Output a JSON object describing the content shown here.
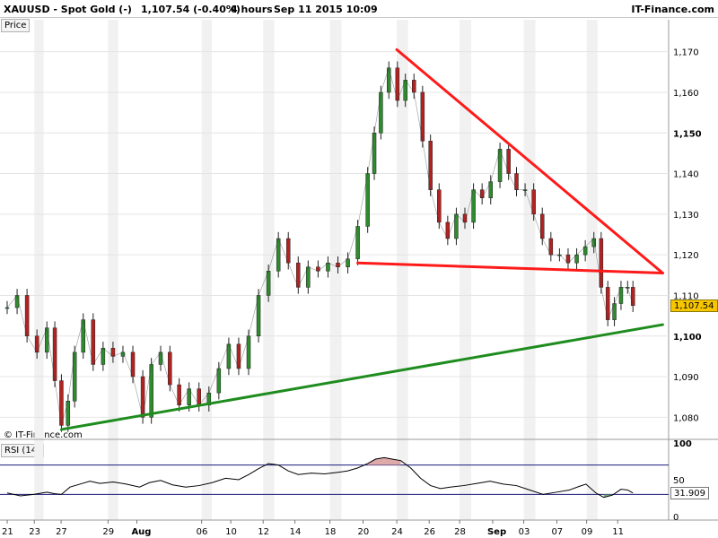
{
  "header": {
    "symbol": "XAUUSD - Spot Gold (-)",
    "last": "1,107.54 (-0.40%)",
    "timeframe": "4 hours",
    "datetime": "Sep 11 2015 10:09",
    "brand": "IT-Finance.com"
  },
  "panels": {
    "price_label": "Price",
    "rsi_label": "RSI (14)",
    "watermark": "© IT-Finance.com"
  },
  "colors": {
    "up_candle": "#2e8b2e",
    "down_candle": "#b22222",
    "resistance_line": "#ff1a1a",
    "support_line": "#1e8c1e",
    "price_box": "#f7c600",
    "rsi_line": "#000000",
    "rsi_band": "#1a1a80",
    "rsi_overbought_fill": "#d89a9a",
    "rsi_oversold_fill": "#6a9a6a"
  },
  "chart_data": {
    "type": "line",
    "title": "XAUUSD - Spot Gold (-)",
    "timeframe": "4 hours",
    "last_price": 1107.54,
    "last_price_label": "1,107.54",
    "ylim": [
      1075,
      1175
    ],
    "yticks": [
      {
        "value": 1080,
        "label": "1,080",
        "bold": false
      },
      {
        "value": 1090,
        "label": "1,090",
        "bold": false
      },
      {
        "value": 1100,
        "label": "1,100",
        "bold": true
      },
      {
        "value": 1110,
        "label": "1,110",
        "bold": false
      },
      {
        "value": 1120,
        "label": "1,120",
        "bold": false
      },
      {
        "value": 1130,
        "label": "1,130",
        "bold": false
      },
      {
        "value": 1140,
        "label": "1,140",
        "bold": false
      },
      {
        "value": 1150,
        "label": "1,150",
        "bold": true
      },
      {
        "value": 1160,
        "label": "1,160",
        "bold": false
      },
      {
        "value": 1170,
        "label": "1,170",
        "bold": false
      }
    ],
    "xticks": [
      {
        "label": "21",
        "bold": false,
        "pos": 0.0
      },
      {
        "label": "23",
        "bold": false,
        "pos": 0.041
      },
      {
        "label": "27",
        "bold": false,
        "pos": 0.0815
      },
      {
        "label": "29",
        "bold": false,
        "pos": 0.1525
      },
      {
        "label": "Aug",
        "bold": true,
        "pos": 0.196
      },
      {
        "label": "06",
        "bold": false,
        "pos": 0.294
      },
      {
        "label": "10",
        "bold": false,
        "pos": 0.338
      },
      {
        "label": "12",
        "bold": false,
        "pos": 0.387
      },
      {
        "label": "14",
        "bold": false,
        "pos": 0.435
      },
      {
        "label": "18",
        "bold": false,
        "pos": 0.488
      },
      {
        "label": "20",
        "bold": false,
        "pos": 0.538
      },
      {
        "label": "24",
        "bold": false,
        "pos": 0.589
      },
      {
        "label": "26",
        "bold": false,
        "pos": 0.638
      },
      {
        "label": "28",
        "bold": false,
        "pos": 0.684
      },
      {
        "label": "Sep",
        "bold": true,
        "pos": 0.734
      },
      {
        "label": "03",
        "bold": false,
        "pos": 0.781
      },
      {
        "label": "07",
        "bold": false,
        "pos": 0.831
      },
      {
        "label": "09",
        "bold": false,
        "pos": 0.876
      },
      {
        "label": "11",
        "bold": false,
        "pos": 0.923
      }
    ],
    "price_series": [
      [
        0.0,
        1107
      ],
      [
        0.015,
        1110
      ],
      [
        0.03,
        1100
      ],
      [
        0.045,
        1096
      ],
      [
        0.06,
        1102
      ],
      [
        0.072,
        1089
      ],
      [
        0.082,
        1078
      ],
      [
        0.092,
        1084
      ],
      [
        0.102,
        1096
      ],
      [
        0.115,
        1104
      ],
      [
        0.13,
        1093
      ],
      [
        0.145,
        1097
      ],
      [
        0.16,
        1095
      ],
      [
        0.175,
        1096
      ],
      [
        0.19,
        1090
      ],
      [
        0.205,
        1080
      ],
      [
        0.218,
        1093
      ],
      [
        0.232,
        1096
      ],
      [
        0.246,
        1088
      ],
      [
        0.26,
        1083
      ],
      [
        0.275,
        1087
      ],
      [
        0.29,
        1083
      ],
      [
        0.305,
        1086
      ],
      [
        0.32,
        1092
      ],
      [
        0.335,
        1098
      ],
      [
        0.35,
        1092
      ],
      [
        0.365,
        1100
      ],
      [
        0.38,
        1110
      ],
      [
        0.395,
        1116
      ],
      [
        0.41,
        1124
      ],
      [
        0.425,
        1118
      ],
      [
        0.44,
        1112
      ],
      [
        0.455,
        1117
      ],
      [
        0.47,
        1116
      ],
      [
        0.485,
        1118
      ],
      [
        0.5,
        1117
      ],
      [
        0.515,
        1119
      ],
      [
        0.53,
        1127
      ],
      [
        0.545,
        1140
      ],
      [
        0.555,
        1150
      ],
      [
        0.565,
        1160
      ],
      [
        0.577,
        1166
      ],
      [
        0.59,
        1158
      ],
      [
        0.602,
        1163
      ],
      [
        0.615,
        1160
      ],
      [
        0.628,
        1148
      ],
      [
        0.64,
        1136
      ],
      [
        0.653,
        1128
      ],
      [
        0.666,
        1124
      ],
      [
        0.679,
        1130
      ],
      [
        0.692,
        1128
      ],
      [
        0.705,
        1136
      ],
      [
        0.718,
        1134
      ],
      [
        0.731,
        1138
      ],
      [
        0.745,
        1146
      ],
      [
        0.758,
        1140
      ],
      [
        0.77,
        1136
      ],
      [
        0.783,
        1136
      ],
      [
        0.796,
        1130
      ],
      [
        0.809,
        1124
      ],
      [
        0.822,
        1120
      ],
      [
        0.835,
        1120
      ],
      [
        0.848,
        1118
      ],
      [
        0.861,
        1120
      ],
      [
        0.874,
        1122
      ],
      [
        0.887,
        1124
      ],
      [
        0.898,
        1112
      ],
      [
        0.908,
        1104
      ],
      [
        0.918,
        1108
      ],
      [
        0.928,
        1112
      ],
      [
        0.938,
        1112
      ],
      [
        0.946,
        1107.5
      ]
    ],
    "trendlines": [
      {
        "name": "resistance",
        "color": "#ff1a1a",
        "from": [
          0.589,
          1170.5
        ],
        "to": [
          0.991,
          1115.5
        ]
      },
      {
        "name": "neckline",
        "color": "#ff1a1a",
        "from": [
          0.53,
          1118
        ],
        "to": [
          0.991,
          1115.5
        ]
      },
      {
        "name": "support",
        "color": "#1e8c1e",
        "from": [
          0.082,
          1077
        ],
        "to": [
          0.991,
          1102.8
        ]
      }
    ],
    "rsi": {
      "label": "RSI (14)",
      "last_value": 31.909,
      "last_label": "31.909",
      "ylim": [
        0,
        100
      ],
      "yticks": [
        {
          "value": 0,
          "label": "0"
        },
        {
          "value": 50,
          "label": "50"
        },
        {
          "value": 100,
          "label": "100"
        }
      ],
      "overbought": 70,
      "oversold": 30,
      "series": [
        [
          0.0,
          32
        ],
        [
          0.02,
          28
        ],
        [
          0.04,
          30
        ],
        [
          0.06,
          33
        ],
        [
          0.072,
          31
        ],
        [
          0.082,
          30
        ],
        [
          0.095,
          40
        ],
        [
          0.11,
          44
        ],
        [
          0.125,
          48
        ],
        [
          0.14,
          45
        ],
        [
          0.16,
          47
        ],
        [
          0.18,
          44
        ],
        [
          0.2,
          40
        ],
        [
          0.215,
          46
        ],
        [
          0.232,
          49
        ],
        [
          0.25,
          43
        ],
        [
          0.27,
          40
        ],
        [
          0.29,
          42
        ],
        [
          0.31,
          46
        ],
        [
          0.33,
          52
        ],
        [
          0.35,
          50
        ],
        [
          0.365,
          57
        ],
        [
          0.38,
          65
        ],
        [
          0.395,
          72
        ],
        [
          0.41,
          70
        ],
        [
          0.425,
          62
        ],
        [
          0.44,
          57
        ],
        [
          0.46,
          59
        ],
        [
          0.48,
          58
        ],
        [
          0.5,
          60
        ],
        [
          0.515,
          62
        ],
        [
          0.53,
          66
        ],
        [
          0.545,
          72
        ],
        [
          0.557,
          78
        ],
        [
          0.57,
          80
        ],
        [
          0.582,
          78
        ],
        [
          0.595,
          76
        ],
        [
          0.61,
          66
        ],
        [
          0.625,
          52
        ],
        [
          0.64,
          42
        ],
        [
          0.655,
          38
        ],
        [
          0.67,
          40
        ],
        [
          0.69,
          42
        ],
        [
          0.71,
          45
        ],
        [
          0.73,
          48
        ],
        [
          0.75,
          44
        ],
        [
          0.77,
          42
        ],
        [
          0.79,
          36
        ],
        [
          0.81,
          30
        ],
        [
          0.83,
          33
        ],
        [
          0.85,
          36
        ],
        [
          0.865,
          41
        ],
        [
          0.875,
          44
        ],
        [
          0.89,
          32
        ],
        [
          0.902,
          26
        ],
        [
          0.915,
          29
        ],
        [
          0.928,
          37
        ],
        [
          0.938,
          36
        ],
        [
          0.946,
          32
        ]
      ]
    }
  }
}
